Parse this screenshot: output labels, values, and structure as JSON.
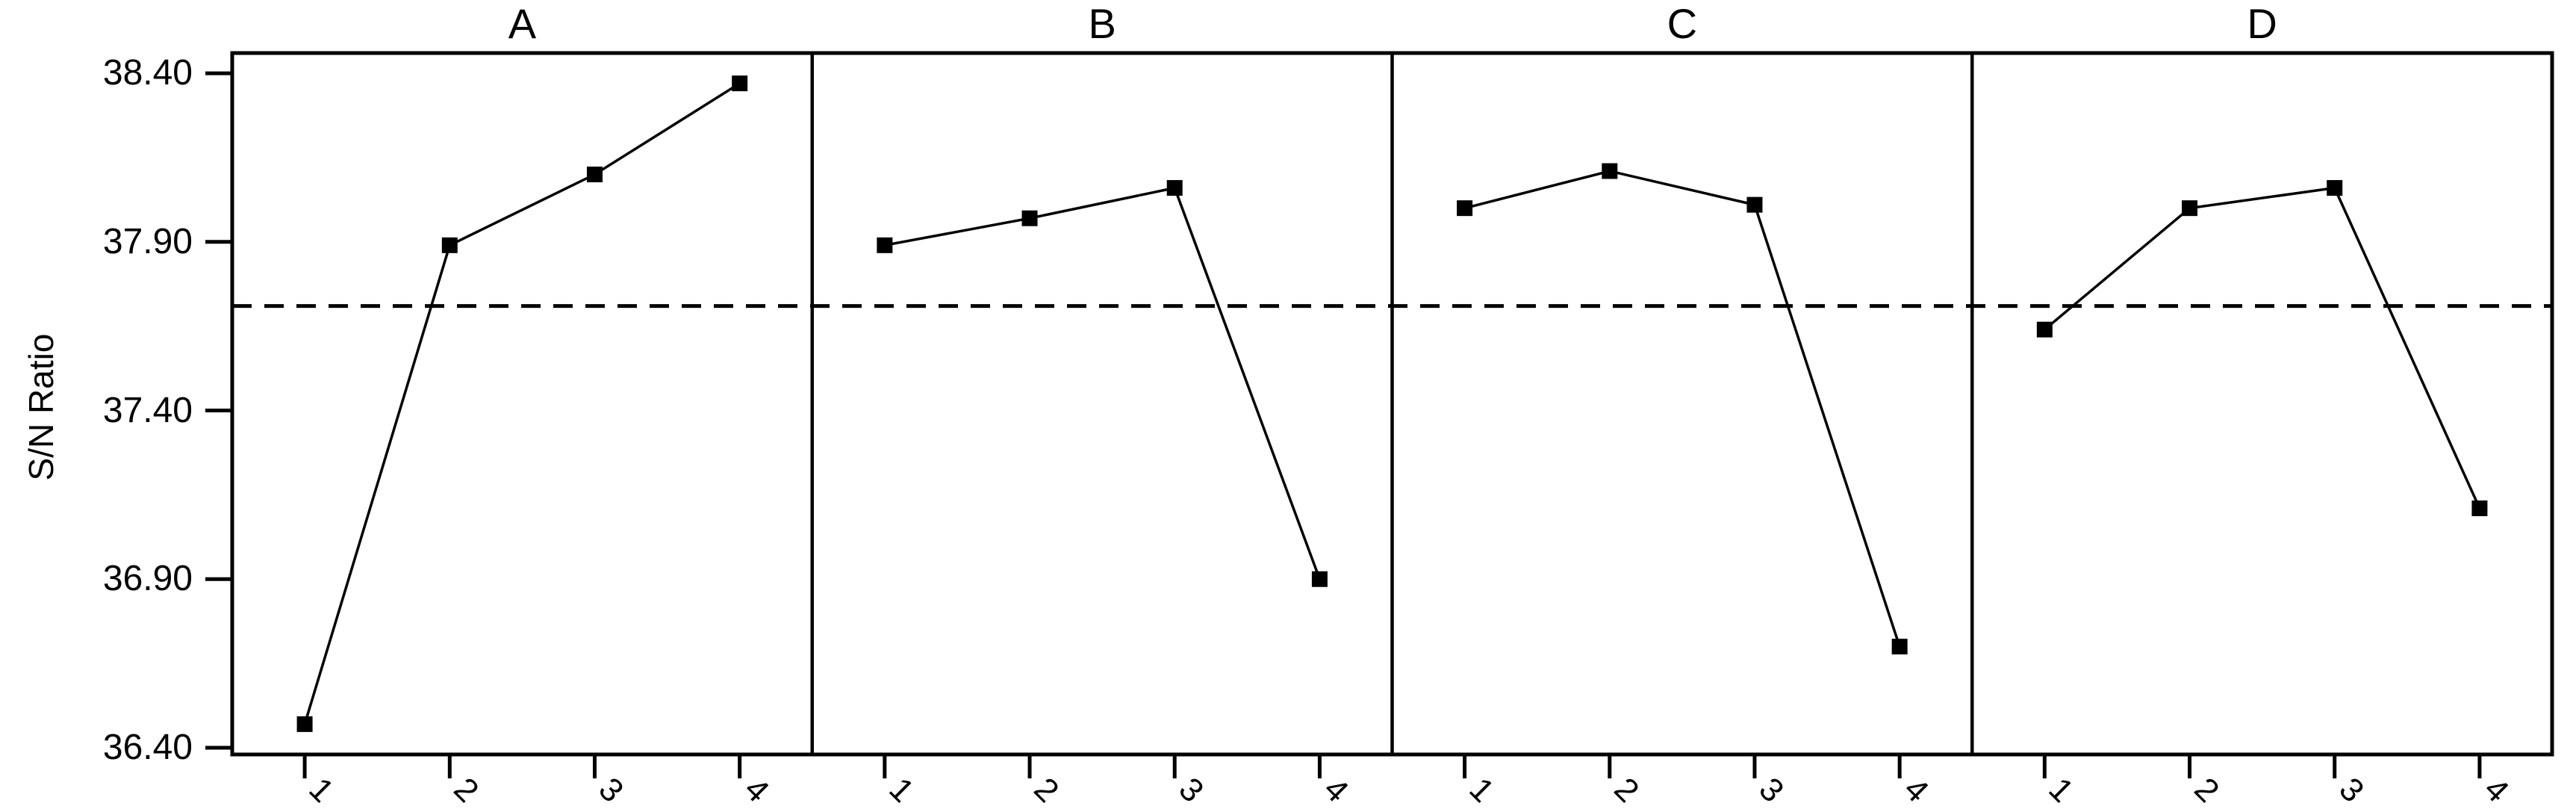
{
  "chart_data": {
    "type": "line",
    "chart_kind": "main-effects-plot",
    "title": "",
    "ylabel": "S/N Ratio",
    "ylim": [
      36.38,
      38.46
    ],
    "y_ticks": [
      {
        "value": 38.4,
        "label": "38.40"
      },
      {
        "value": 37.9,
        "label": "37.90"
      },
      {
        "value": 37.4,
        "label": "37.40"
      },
      {
        "value": 36.9,
        "label": "36.90"
      },
      {
        "value": 36.4,
        "label": "36.40"
      }
    ],
    "x_levels": [
      "1",
      "2",
      "3",
      "4"
    ],
    "panels": [
      {
        "title": "A",
        "x_tick_labels": [
          "1",
          "2",
          "3",
          "4"
        ],
        "values": [
          36.47,
          37.89,
          38.1,
          38.37
        ]
      },
      {
        "title": "B",
        "x_tick_labels": [
          "1",
          "2",
          "3",
          "4"
        ],
        "values": [
          37.89,
          37.97,
          38.06,
          36.9
        ]
      },
      {
        "title": "C",
        "x_tick_labels": [
          "1",
          "2",
          "3",
          "4"
        ],
        "values": [
          38.0,
          38.11,
          38.01,
          36.7
        ]
      },
      {
        "title": "D",
        "x_tick_labels": [
          "1",
          "2",
          "3",
          "4"
        ],
        "values": [
          37.64,
          38.0,
          38.06,
          37.11
        ]
      }
    ],
    "reference_line": {
      "value": 37.71,
      "style": "dashed"
    },
    "marker": "filled-square",
    "grid": false,
    "legend": "none",
    "colors": {
      "line": "#000000",
      "marker": "#000000",
      "reference": "#000000",
      "background": "#ffffff",
      "text": "#000000"
    }
  }
}
